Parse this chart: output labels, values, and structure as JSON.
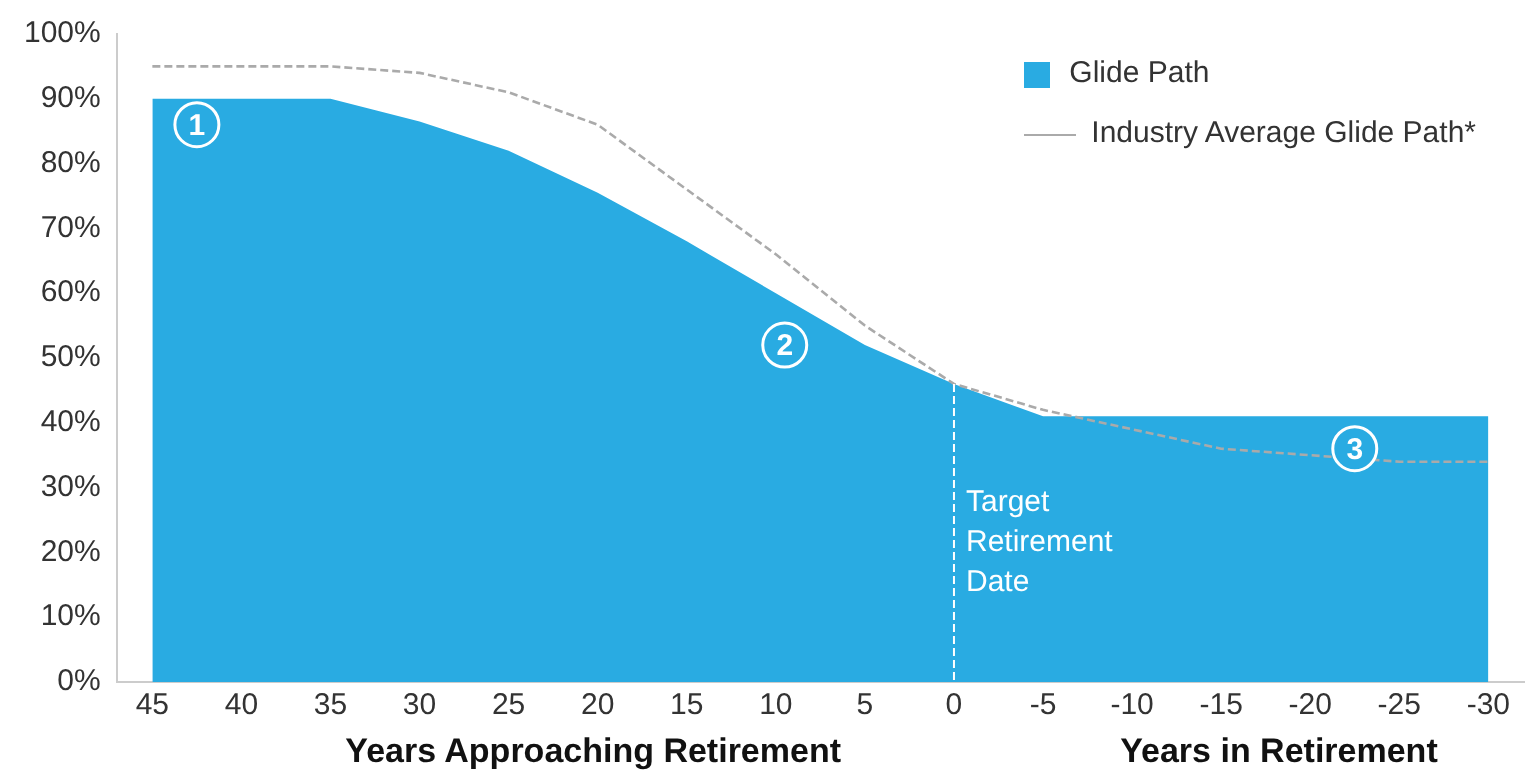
{
  "chart_data": {
    "type": "area",
    "xlabel": "Years Approaching Retirement",
    "xlim": [
      47,
      -32
    ],
    "xticks": [
      45,
      40,
      35,
      30,
      25,
      20,
      15,
      10,
      5,
      0,
      -5,
      -10,
      -15,
      -20,
      -25,
      -30
    ],
    "ylim": [
      0,
      100
    ],
    "yticks": [
      {
        "value": 0,
        "label": "0%"
      },
      {
        "value": 10,
        "label": "10%"
      },
      {
        "value": 20,
        "label": "20%"
      },
      {
        "value": 30,
        "label": "30%"
      },
      {
        "value": 40,
        "label": "40%"
      },
      {
        "value": 50,
        "label": "50%"
      },
      {
        "value": 60,
        "label": "60%"
      },
      {
        "value": 70,
        "label": "70%"
      },
      {
        "value": 80,
        "label": "80%"
      },
      {
        "value": 90,
        "label": "90%"
      },
      {
        "value": 100,
        "label": "100%"
      }
    ],
    "series": [
      {
        "name": "Glide Path",
        "color": "#29abe2",
        "x": [
          45,
          35,
          30,
          25,
          20,
          15,
          10,
          5,
          0,
          -5,
          -30
        ],
        "values": [
          90,
          90,
          86.5,
          82,
          75.5,
          68,
          60,
          52,
          46,
          41,
          41
        ]
      },
      {
        "name": "Industry Average Glide Path*",
        "type": "line",
        "color": "#aaaaaa",
        "line_style": "dashed",
        "marker": "none",
        "x": [
          45,
          35,
          30,
          25,
          20,
          15,
          10,
          5,
          0,
          -5,
          -10,
          -15,
          -20,
          -25,
          -30
        ],
        "values": [
          95,
          95,
          94,
          91,
          86,
          76,
          66,
          55,
          46,
          42,
          39,
          36,
          35,
          34,
          34
        ]
      }
    ],
    "ref_lines": [
      {
        "axis": "x",
        "value": 0,
        "label": "Target Retirement Date",
        "color": "#ffffff",
        "line_style": "dashed"
      }
    ],
    "annotations": [
      "Years in Retirement",
      {
        "text": "1",
        "x": 42.5,
        "y": 86
      },
      {
        "text": "2",
        "x": 9.5,
        "y": 52
      },
      {
        "text": "3",
        "x": -22.5,
        "y": 36
      }
    ],
    "grid": false,
    "legend": "top right"
  }
}
